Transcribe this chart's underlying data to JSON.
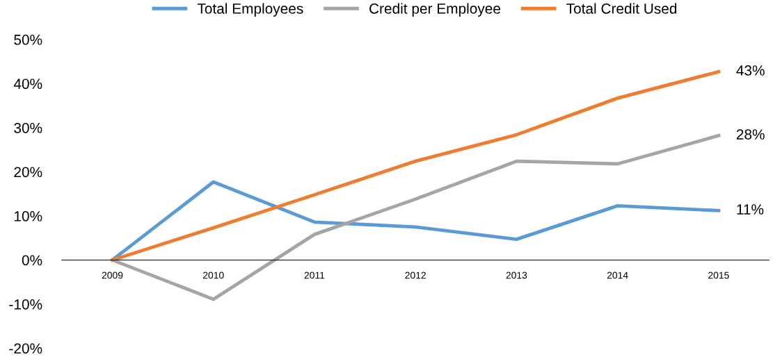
{
  "chart_data": {
    "type": "line",
    "categories": [
      "2009",
      "2010",
      "2011",
      "2012",
      "2013",
      "2014",
      "2015"
    ],
    "series": [
      {
        "name": "Total Employees",
        "color": "#5b9bd5",
        "values": [
          0,
          17.7,
          8.6,
          7.5,
          4.7,
          12.3,
          11.2
        ],
        "value_labels": [
          null,
          null,
          null,
          null,
          null,
          null,
          "11%"
        ]
      },
      {
        "name": "Credit per Employee",
        "color": "#a5a5a5",
        "values": [
          0,
          -8.9,
          5.8,
          13.8,
          22.4,
          21.8,
          28.2
        ],
        "value_labels": [
          null,
          null,
          null,
          null,
          null,
          null,
          "28%"
        ]
      },
      {
        "name": "Total Credit Used",
        "color": "#ed7d31",
        "values": [
          0,
          7.3,
          14.8,
          22.4,
          28.4,
          36.7,
          42.7
        ],
        "value_labels": [
          null,
          null,
          null,
          null,
          null,
          null,
          "43%"
        ]
      }
    ],
    "ylim": [
      -20,
      50
    ],
    "yticks": [
      {
        "value": -20,
        "label": "-20%"
      },
      {
        "value": -10,
        "label": "-10%"
      },
      {
        "value": 0,
        "label": "0%"
      },
      {
        "value": 10,
        "label": "10%"
      },
      {
        "value": 20,
        "label": "20%"
      },
      {
        "value": 30,
        "label": "30%"
      },
      {
        "value": 40,
        "label": "40%"
      },
      {
        "value": 50,
        "label": "50%"
      }
    ],
    "grid": false,
    "legend": "top",
    "marker": "none",
    "line_style": "solid"
  }
}
